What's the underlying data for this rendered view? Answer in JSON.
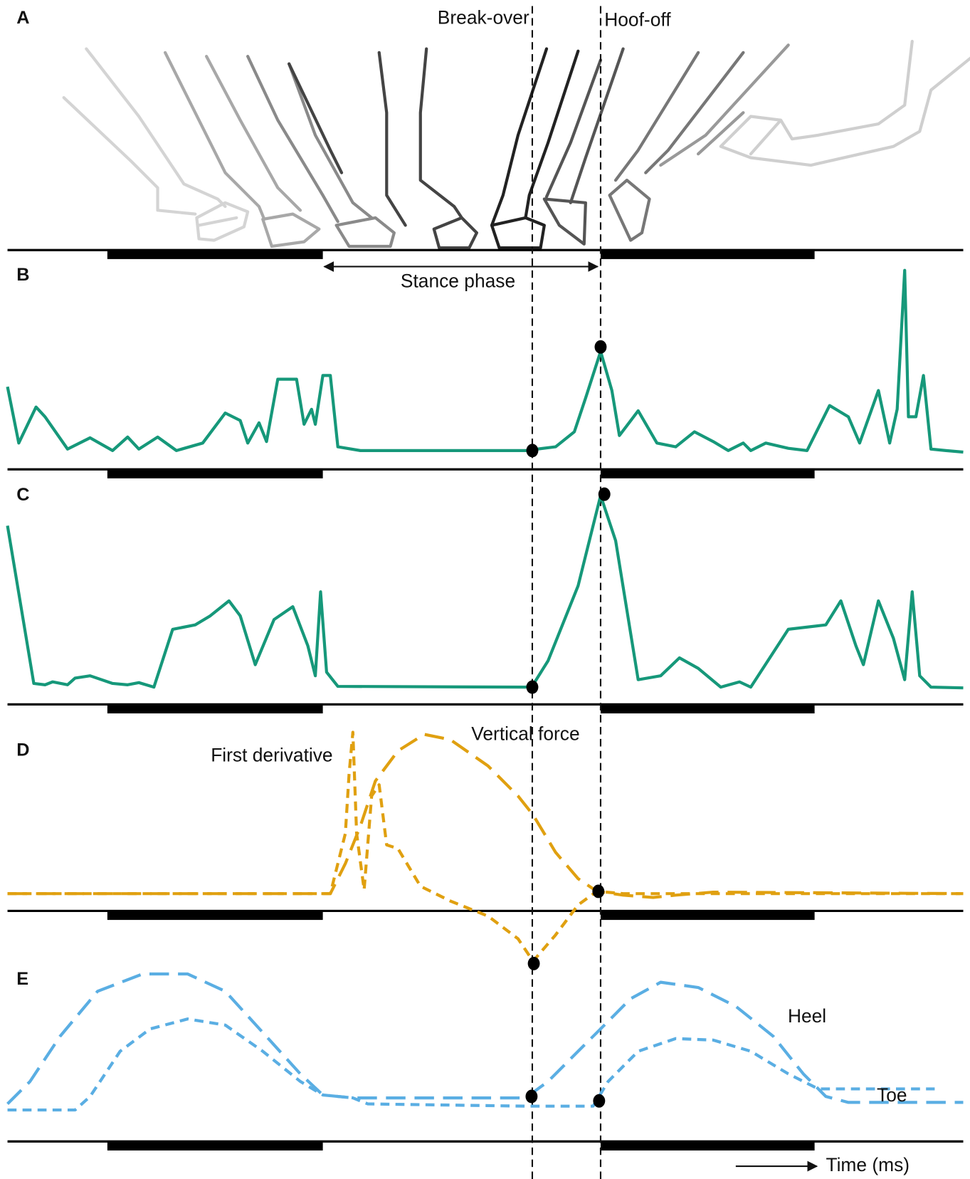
{
  "panel_a": {
    "label": "A"
  },
  "events": [
    {
      "label": "Break-over",
      "x": 709
    },
    {
      "label": "Hoof-off",
      "x": 800
    }
  ],
  "stance_label": "Stance phase",
  "time_label": "Time (ms)",
  "xlim": [
    10,
    1283
  ],
  "phase_bars": [
    [
      143,
      430
    ],
    [
      800,
      1085
    ]
  ],
  "chart_data": [
    {
      "type": "line",
      "label": "B",
      "ylim": [
        0,
        100
      ],
      "series": [
        {
          "color": "#16987a",
          "style": "solid",
          "x": [
            10,
            25,
            48,
            60,
            90,
            120,
            150,
            170,
            185,
            210,
            235,
            270,
            300,
            320,
            330,
            345,
            355,
            370,
            395,
            405,
            415,
            420,
            430,
            440,
            450,
            480,
            700,
            740,
            765,
            780,
            800,
            815,
            825,
            850,
            875,
            900,
            925,
            950,
            970,
            990,
            1000,
            1020,
            1050,
            1075,
            1105,
            1130,
            1145,
            1170,
            1185,
            1195,
            1205,
            1210,
            1220,
            1230,
            1240,
            1260,
            1283
          ],
          "values": [
            36,
            6,
            25.2,
            20,
            2.8,
            8.8,
            2,
            9.2,
            2.8,
            9.2,
            2,
            6,
            22,
            18,
            6,
            16.8,
            6.8,
            40,
            40,
            16,
            24,
            16,
            42,
            42,
            4,
            2,
            2,
            4,
            12,
            30,
            54.8,
            34,
            10,
            23.2,
            6,
            4,
            12,
            6.8,
            2,
            6,
            2,
            6,
            3.2,
            2,
            26,
            20,
            6,
            34,
            6,
            24,
            98,
            20,
            20,
            42,
            2.8,
            2,
            1.2
          ]
        }
      ],
      "markers": {
        "x": [
          709,
          800
        ],
        "values": [
          2,
          57.2
        ]
      }
    },
    {
      "type": "line",
      "label": "C",
      "ylim": [
        0,
        100
      ],
      "series": [
        {
          "color": "#16987a",
          "style": "solid",
          "x": [
            10,
            25,
            45,
            60,
            70,
            90,
            100,
            120,
            150,
            170,
            185,
            205,
            230,
            260,
            280,
            305,
            320,
            340,
            365,
            390,
            410,
            420,
            427,
            435,
            450,
            700,
            710,
            730,
            770,
            800,
            820,
            850,
            880,
            905,
            930,
            960,
            985,
            1000,
            1050,
            1100,
            1120,
            1140,
            1150,
            1170,
            1190,
            1205,
            1215,
            1225,
            1240,
            1283
          ],
          "values": [
            82.7,
            48.1,
            1.9,
            1.2,
            2.7,
            1.2,
            4.6,
            5.8,
            1.9,
            1.2,
            2.3,
            0,
            29.6,
            31.9,
            36.5,
            44.2,
            36.5,
            11.5,
            34.6,
            41.2,
            21.2,
            5.8,
            48.8,
            7.7,
            0.4,
            0,
            1.2,
            13.5,
            51.9,
            98.1,
            75,
            3.8,
            5.8,
            15,
            9.6,
            0,
            2.7,
            0,
            29.6,
            31.9,
            44.2,
            21.2,
            11.5,
            44.2,
            25,
            3.8,
            48.8,
            5.8,
            0,
            -0.4
          ]
        }
      ],
      "markers": {
        "x": [
          709,
          805
        ],
        "values": [
          0,
          98.8
        ]
      }
    },
    {
      "type": "line",
      "label": "D",
      "ylim": [
        -45,
        100
      ],
      "annotations": [
        {
          "text": "First derivative",
          "x": 362,
          "y": 83
        },
        {
          "text": "Vertical force",
          "x": 700,
          "y": 96
        }
      ],
      "series": [
        {
          "name": "Vertical force",
          "color": "#e0a010",
          "style": "long-dash",
          "x": [
            10,
            440,
            460,
            480,
            500,
            530,
            565,
            600,
            650,
            690,
            710,
            740,
            770,
            795,
            830,
            870,
            900,
            950,
            1283
          ],
          "values": [
            0,
            0,
            18.2,
            40.9,
            68.2,
            86.4,
            96.4,
            93.2,
            77.3,
            59.1,
            47.7,
            25,
            9.1,
            1.4,
            -0.9,
            -2.3,
            -0.9,
            0.9,
            0
          ]
        },
        {
          "name": "First derivative",
          "color": "#e0a010",
          "style": "short-dash",
          "x": [
            10,
            440,
            450,
            460,
            465,
            470,
            475,
            485,
            495,
            505,
            515,
            530,
            560,
            600,
            650,
            690,
            710,
            740,
            770,
            795,
            830,
            1283
          ],
          "values": [
            0,
            0,
            18.2,
            36.4,
            72.7,
            97.7,
            36.4,
            2.3,
            59.1,
            65.9,
            29.5,
            27.3,
            4.5,
            -4.5,
            -13.6,
            -27.3,
            -40.9,
            -25,
            -6.8,
            1.4,
            0,
            0
          ]
        }
      ],
      "markers": {
        "x": [
          797,
          711
        ],
        "values": [
          1.4,
          -42.3
        ]
      }
    },
    {
      "type": "line",
      "label": "E",
      "ylim": [
        0,
        100
      ],
      "annotations": [
        {
          "text": "Heel",
          "x": 1075,
          "y": 66.7
        },
        {
          "text": "Toe",
          "x": 1188,
          "y": 8.3
        }
      ],
      "series": [
        {
          "name": "Heel",
          "color": "#5aaee3",
          "style": "long-dash",
          "x": [
            10,
            40,
            80,
            130,
            190,
            250,
            300,
            350,
            400,
            430,
            470,
            700,
            730,
            770,
            800,
            840,
            880,
            930,
            980,
            1030,
            1070,
            1100,
            1130,
            1283
          ],
          "values": [
            2.8,
            19.4,
            52.8,
            86.1,
            98.9,
            98.9,
            86.1,
            55.6,
            25,
            9.4,
            7.2,
            7.2,
            19.4,
            41.7,
            58.3,
            80.6,
            92.8,
            88.9,
            75,
            52.8,
            25,
            8.3,
            3.9,
            3.9
          ]
        },
        {
          "name": "Toe",
          "color": "#5aaee3",
          "style": "short-dash",
          "x": [
            10,
            100,
            120,
            160,
            200,
            250,
            300,
            350,
            400,
            430,
            470,
            490,
            700,
            790,
            810,
            850,
            900,
            950,
            1000,
            1050,
            1090,
            1130,
            1245
          ],
          "values": [
            -1.7,
            -1.7,
            8.3,
            41.7,
            58.3,
            65.6,
            61.1,
            41.7,
            19.4,
            9.4,
            7.2,
            2.8,
            1.1,
            1.1,
            19.4,
            41.7,
            51.1,
            50,
            41.7,
            25,
            13.9,
            13.9,
            13.9
          ]
        }
      ],
      "markers": {
        "x": [
          708,
          798
        ],
        "values": [
          8.3,
          5
        ]
      }
    }
  ]
}
